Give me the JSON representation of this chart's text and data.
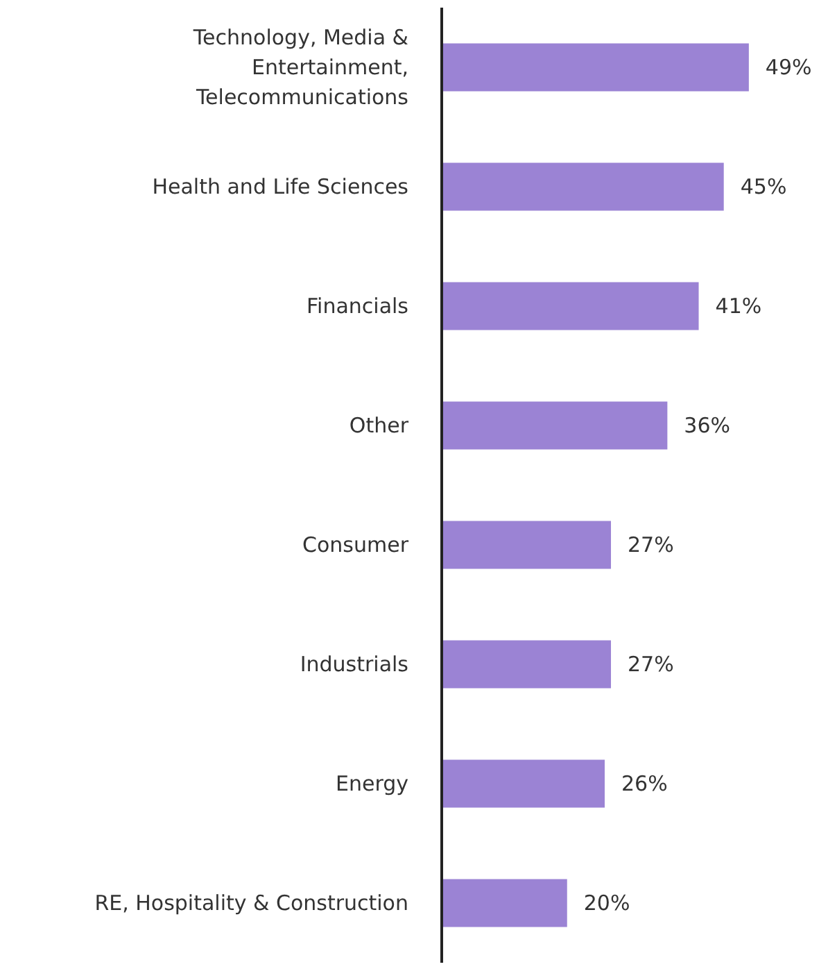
{
  "chart_data": {
    "type": "bar",
    "orientation": "horizontal",
    "categories": [
      "Technology, Media &\nEntertainment,\nTelecommunications",
      "Health and Life Sciences",
      "Financials",
      "Other",
      "Consumer",
      "Industrials",
      "Energy",
      "RE, Hospitality & Construction"
    ],
    "values": [
      49,
      45,
      41,
      36,
      27,
      27,
      26,
      20
    ],
    "value_labels": [
      "49%",
      "45%",
      "41%",
      "36%",
      "27%",
      "27%",
      "26%",
      "20%"
    ],
    "color": "#9b83d4",
    "grid": false
  }
}
